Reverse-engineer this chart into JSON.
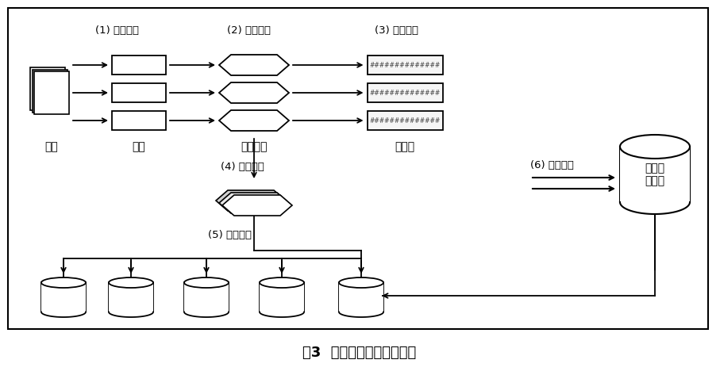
{
  "title": "图3  区块链分布式存储过程",
  "background_color": "#ffffff",
  "border_color": "#000000",
  "label_1": "(1) 数据分片",
  "label_2": "(2) 分片加密",
  "label_3": "(3) 生成哈希",
  "label_4": "(4) 复制分片",
  "label_5": "(5) 分发分片",
  "label_6": "(6) 记录交易",
  "label_data": "数据",
  "label_shard": "分片",
  "label_enc": "加密分片",
  "label_hash": "哈希值",
  "label_ledger": "区块链\n分类账",
  "hash_text": "##############",
  "fig_width": 9.07,
  "fig_height": 4.73,
  "dpi": 100
}
